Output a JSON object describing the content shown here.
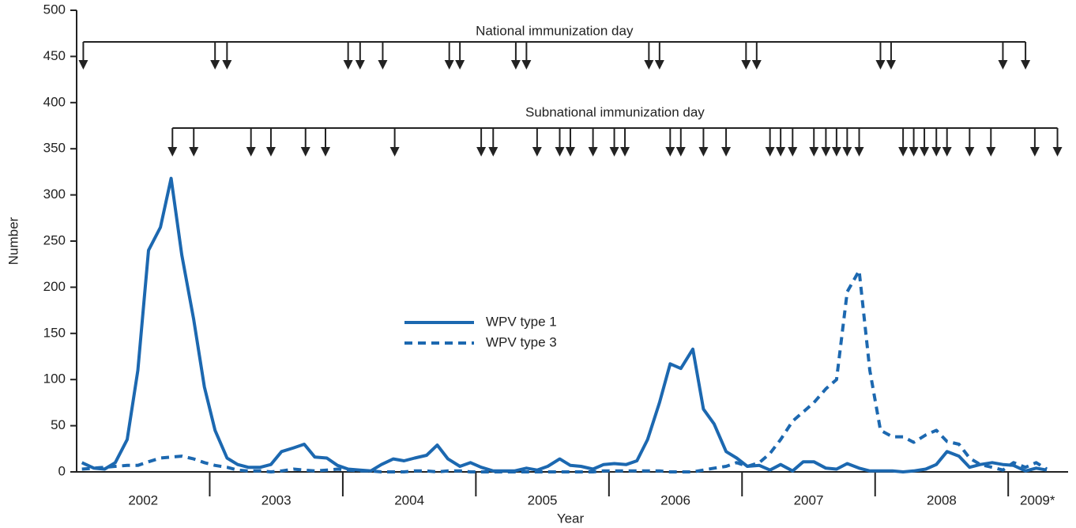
{
  "chart_data": {
    "type": "line",
    "x_label": "Year",
    "y_label": "Number",
    "xlim": [
      2002,
      2009.45
    ],
    "ylim": [
      0,
      500
    ],
    "yticks": [
      0,
      50,
      100,
      150,
      200,
      250,
      300,
      350,
      400,
      450,
      500
    ],
    "xticks": [
      {
        "value": 2002.5,
        "label": "2002"
      },
      {
        "value": 2003.5,
        "label": "2003"
      },
      {
        "value": 2004.5,
        "label": "2004"
      },
      {
        "value": 2005.5,
        "label": "2005"
      },
      {
        "value": 2006.5,
        "label": "2006"
      },
      {
        "value": 2007.5,
        "label": "2007"
      },
      {
        "value": 2008.5,
        "label": "2008"
      },
      {
        "value": 2009.22,
        "label": "2009*"
      }
    ],
    "x_dividers": [
      2003,
      2004,
      2005,
      2006,
      2007,
      2008,
      2009
    ],
    "x": [
      2002.04,
      2002.13,
      2002.21,
      2002.29,
      2002.38,
      2002.46,
      2002.54,
      2002.63,
      2002.71,
      2002.79,
      2002.88,
      2002.96,
      2003.04,
      2003.13,
      2003.21,
      2003.29,
      2003.38,
      2003.46,
      2003.54,
      2003.63,
      2003.71,
      2003.79,
      2003.88,
      2003.96,
      2004.04,
      2004.13,
      2004.21,
      2004.29,
      2004.38,
      2004.46,
      2004.54,
      2004.63,
      2004.71,
      2004.79,
      2004.88,
      2004.96,
      2005.04,
      2005.13,
      2005.21,
      2005.29,
      2005.38,
      2005.46,
      2005.54,
      2005.63,
      2005.71,
      2005.79,
      2005.88,
      2005.96,
      2006.04,
      2006.13,
      2006.21,
      2006.29,
      2006.38,
      2006.46,
      2006.54,
      2006.63,
      2006.71,
      2006.79,
      2006.88,
      2006.96,
      2007.04,
      2007.13,
      2007.21,
      2007.29,
      2007.38,
      2007.46,
      2007.54,
      2007.63,
      2007.71,
      2007.79,
      2007.88,
      2007.96,
      2008.04,
      2008.13,
      2008.21,
      2008.29,
      2008.38,
      2008.46,
      2008.54,
      2008.63,
      2008.71,
      2008.79,
      2008.88,
      2008.96,
      2009.04,
      2009.13,
      2009.21,
      2009.29
    ],
    "series": [
      {
        "name": "WPV type 1",
        "color": "#1c68b0",
        "dash": false,
        "values": [
          10,
          4,
          3,
          10,
          35,
          110,
          240,
          265,
          318,
          235,
          165,
          92,
          45,
          15,
          8,
          5,
          5,
          8,
          22,
          26,
          30,
          16,
          15,
          7,
          3,
          2,
          1,
          8,
          14,
          12,
          15,
          18,
          29,
          14,
          6,
          10,
          5,
          1,
          1,
          1,
          4,
          2,
          6,
          14,
          7,
          6,
          3,
          8,
          9,
          8,
          12,
          35,
          75,
          117,
          112,
          133,
          68,
          52,
          22,
          15,
          6,
          7,
          2,
          8,
          1,
          11,
          11,
          4,
          3,
          9,
          4,
          1,
          1,
          1,
          0,
          1,
          3,
          8,
          22,
          17,
          5,
          8,
          10,
          8,
          7,
          1,
          4,
          2
        ]
      },
      {
        "name": "WPV type 3",
        "color": "#1c68b0",
        "dash": true,
        "values": [
          3,
          4,
          5,
          6,
          7,
          7,
          11,
          15,
          16,
          17,
          14,
          10,
          7,
          5,
          2,
          1,
          1,
          0,
          1,
          3,
          2,
          1,
          2,
          3,
          2,
          1,
          1,
          0,
          0,
          0,
          1,
          1,
          0,
          1,
          1,
          0,
          0,
          0,
          0,
          0,
          0,
          0,
          0,
          0,
          0,
          0,
          0,
          1,
          1,
          1,
          1,
          1,
          1,
          0,
          0,
          0,
          2,
          4,
          6,
          10,
          6,
          10,
          20,
          35,
          55,
          65,
          75,
          90,
          100,
          195,
          218,
          110,
          45,
          38,
          38,
          32,
          40,
          45,
          33,
          30,
          15,
          8,
          5,
          2,
          10,
          5,
          10,
          3
        ]
      }
    ],
    "annotations": [
      {
        "text": "National immunization day",
        "dates": [
          2002.05,
          2003.04,
          2003.13,
          2004.04,
          2004.13,
          2004.3,
          2004.8,
          2004.88,
          2005.3,
          2005.38,
          2006.3,
          2006.38,
          2007.03,
          2007.11,
          2008.04,
          2008.12,
          2008.96,
          2009.13
        ]
      },
      {
        "text": "Subnational immunization day",
        "dates": [
          2002.72,
          2002.88,
          2003.31,
          2003.46,
          2003.72,
          2003.87,
          2004.39,
          2005.04,
          2005.13,
          2005.46,
          2005.63,
          2005.71,
          2005.88,
          2006.04,
          2006.12,
          2006.46,
          2006.54,
          2006.71,
          2006.88,
          2007.21,
          2007.29,
          2007.38,
          2007.54,
          2007.63,
          2007.71,
          2007.79,
          2007.88,
          2008.21,
          2008.29,
          2008.37,
          2008.46,
          2008.54,
          2008.71,
          2008.87,
          2009.2,
          2009.37
        ]
      }
    ]
  }
}
